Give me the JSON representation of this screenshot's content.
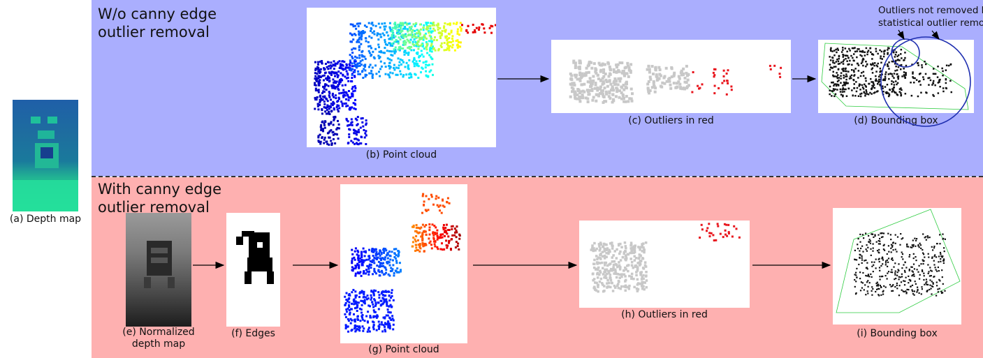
{
  "top": {
    "heading": "W/o canny edge\noutlier removal",
    "cap_point_cloud": "(b) Point cloud",
    "cap_outliers": "(c) Outliers in red",
    "cap_bbox": "(d) Bounding box",
    "annotation": "Outliers not removed by\nstatistical outlier removal"
  },
  "bottom": {
    "heading": "With canny edge\noutlier removal",
    "cap_normalized": "(e) Normalized\ndepth map",
    "cap_edges": "(f) Edges",
    "cap_point_cloud": "(g) Point cloud",
    "cap_outliers": "(h) Outliers in red",
    "cap_bbox": "(i) Bounding box"
  },
  "left": {
    "cap_depth": "(a) Depth map"
  },
  "colors": {
    "top_band": "#aaaefe",
    "bottom_band": "#feb0b0",
    "outlier": "#e8141c",
    "inlier": "#c8c8c8",
    "bbox_line": "#2ecc40",
    "circle": "#1f2fb0",
    "cloud_near": "#1a2fc8",
    "cloud_far": "#d81a10"
  }
}
